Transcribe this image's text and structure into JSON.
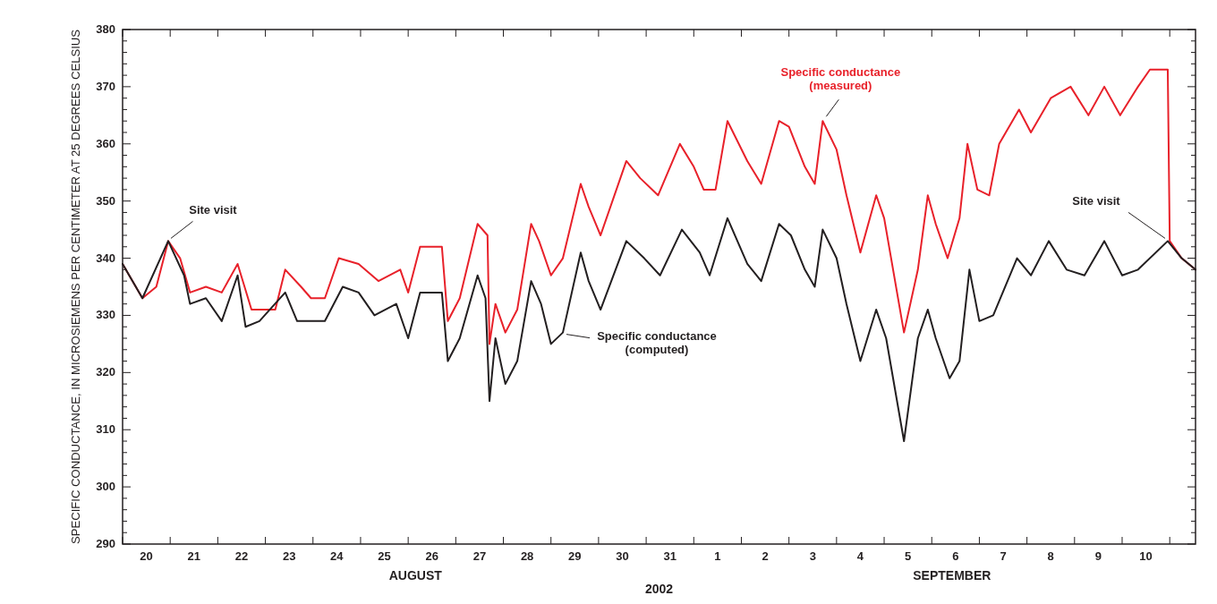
{
  "chart_data": {
    "type": "line",
    "ylabel": "SPECIFIC CONDUCTANCE, IN MICROSIEMENS PER CENTIMETER AT 25 DEGREES CELSIUS",
    "xlabel": "2002",
    "xlim": [
      "2002-08-20T00:00",
      "2002-09-11T13:00"
    ],
    "xticks": [
      {
        "value": "2002-08-20T00:00",
        "label": null
      },
      {
        "value": "2002-08-20T12:00",
        "label": "20"
      },
      {
        "value": "2002-08-21T00:00",
        "label": null
      },
      {
        "value": "2002-08-21T12:00",
        "label": "21"
      },
      {
        "value": "2002-08-22T00:00",
        "label": null
      },
      {
        "value": "2002-08-22T12:00",
        "label": "22"
      },
      {
        "value": "2002-08-23T00:00",
        "label": null
      },
      {
        "value": "2002-08-23T12:00",
        "label": "23"
      },
      {
        "value": "2002-08-24T00:00",
        "label": null
      },
      {
        "value": "2002-08-24T12:00",
        "label": "24"
      },
      {
        "value": "2002-08-25T00:00",
        "label": null
      },
      {
        "value": "2002-08-25T12:00",
        "label": "25"
      },
      {
        "value": "2002-08-26T00:00",
        "label": null
      },
      {
        "value": "2002-08-26T12:00",
        "label": "26"
      },
      {
        "value": "2002-08-27T00:00",
        "label": null
      },
      {
        "value": "2002-08-27T12:00",
        "label": "27"
      },
      {
        "value": "2002-08-28T00:00",
        "label": null
      },
      {
        "value": "2002-08-28T12:00",
        "label": "28"
      },
      {
        "value": "2002-08-29T00:00",
        "label": null
      },
      {
        "value": "2002-08-29T12:00",
        "label": "29"
      },
      {
        "value": "2002-08-30T00:00",
        "label": null
      },
      {
        "value": "2002-08-30T12:00",
        "label": "30"
      },
      {
        "value": "2002-08-31T00:00",
        "label": null
      },
      {
        "value": "2002-08-31T12:00",
        "label": "31"
      },
      {
        "value": "2002-09-01T00:00",
        "label": null
      },
      {
        "value": "2002-09-01T12:00",
        "label": "1"
      },
      {
        "value": "2002-09-02T00:00",
        "label": null
      },
      {
        "value": "2002-09-02T12:00",
        "label": "2"
      },
      {
        "value": "2002-09-03T00:00",
        "label": null
      },
      {
        "value": "2002-09-03T12:00",
        "label": "3"
      },
      {
        "value": "2002-09-04T00:00",
        "label": null
      },
      {
        "value": "2002-09-04T12:00",
        "label": "4"
      },
      {
        "value": "2002-09-05T00:00",
        "label": null
      },
      {
        "value": "2002-09-05T12:00",
        "label": "5"
      },
      {
        "value": "2002-09-06T00:00",
        "label": null
      },
      {
        "value": "2002-09-06T12:00",
        "label": "6"
      },
      {
        "value": "2002-09-07T00:00",
        "label": null
      },
      {
        "value": "2002-09-07T12:00",
        "label": "7"
      },
      {
        "value": "2002-09-08T00:00",
        "label": null
      },
      {
        "value": "2002-09-08T12:00",
        "label": "8"
      },
      {
        "value": "2002-09-09T00:00",
        "label": null
      },
      {
        "value": "2002-09-09T12:00",
        "label": "9"
      },
      {
        "value": "2002-09-10T00:00",
        "label": null
      },
      {
        "value": "2002-09-10T12:00",
        "label": "10"
      },
      {
        "value": "2002-09-11T00:00",
        "label": null
      }
    ],
    "ylim": [
      290,
      380
    ],
    "yticks": [
      290,
      {
        "value": 292,
        "label": null
      },
      {
        "value": 294,
        "label": null
      },
      {
        "value": 296,
        "label": null
      },
      {
        "value": 298,
        "label": null
      },
      300,
      {
        "value": 302,
        "label": null
      },
      {
        "value": 304,
        "label": null
      },
      {
        "value": 306,
        "label": null
      },
      {
        "value": 308,
        "label": null
      },
      310,
      {
        "value": 312,
        "label": null
      },
      {
        "value": 314,
        "label": null
      },
      {
        "value": 316,
        "label": null
      },
      {
        "value": 318,
        "label": null
      },
      320,
      {
        "value": 322,
        "label": null
      },
      {
        "value": 324,
        "label": null
      },
      {
        "value": 326,
        "label": null
      },
      {
        "value": 328,
        "label": null
      },
      330,
      {
        "value": 332,
        "label": null
      },
      {
        "value": 334,
        "label": null
      },
      {
        "value": 336,
        "label": null
      },
      {
        "value": 338,
        "label": null
      },
      340,
      {
        "value": 342,
        "label": null
      },
      {
        "value": 344,
        "label": null
      },
      {
        "value": 346,
        "label": null
      },
      {
        "value": 348,
        "label": null
      },
      350,
      {
        "value": 352,
        "label": null
      },
      {
        "value": 354,
        "label": null
      },
      {
        "value": 356,
        "label": null
      },
      {
        "value": 358,
        "label": null
      },
      360,
      {
        "value": 362,
        "label": null
      },
      {
        "value": 364,
        "label": null
      },
      {
        "value": 366,
        "label": null
      },
      {
        "value": 368,
        "label": null
      },
      370,
      {
        "value": 372,
        "label": null
      },
      {
        "value": 374,
        "label": null
      },
      {
        "value": 376,
        "label": null
      },
      {
        "value": 378,
        "label": null
      },
      380
    ],
    "grid": false,
    "annotations": [
      {
        "text": "Site visit",
        "x": "2002-08-20T23:00",
        "y": 343
      },
      {
        "text": "Site visit",
        "x": "2002-09-10T23:00",
        "y": 343
      },
      "AUGUST",
      "SEPTEMBER"
    ],
    "series": [
      {
        "name": "Specific conductance (measured)",
        "color": "#e8212a",
        "x": [
          "2002-08-20T00:00",
          "2002-08-20T10:00",
          "2002-08-20T17:00",
          "2002-08-20T23:00",
          "2002-08-21T05:00",
          "2002-08-21T10:00",
          "2002-08-21T18:00",
          "2002-08-22T02:00",
          "2002-08-22T10:00",
          "2002-08-22T17:00",
          "2002-08-23T05:00",
          "2002-08-23T10:00",
          "2002-08-23T18:00",
          "2002-08-23T23:00",
          "2002-08-24T06:00",
          "2002-08-24T13:00",
          "2002-08-24T23:00",
          "2002-08-25T09:00",
          "2002-08-25T20:00",
          "2002-08-26T00:00",
          "2002-08-26T06:00",
          "2002-08-26T17:00",
          "2002-08-26T20:00",
          "2002-08-27T02:00",
          "2002-08-27T11:00",
          "2002-08-27T16:00",
          "2002-08-27T17:00",
          "2002-08-27T20:00",
          "2002-08-28T01:00",
          "2002-08-28T07:00",
          "2002-08-28T14:00",
          "2002-08-28T18:00",
          "2002-08-29T00:00",
          "2002-08-29T06:00",
          "2002-08-29T15:00",
          "2002-08-29T19:00",
          "2002-08-30T01:00",
          "2002-08-30T14:00",
          "2002-08-30T21:00",
          "2002-08-31T06:00",
          "2002-08-31T17:00",
          "2002-09-01T00:00",
          "2002-09-01T05:00",
          "2002-09-01T11:00",
          "2002-09-01T17:00",
          "2002-09-02T03:00",
          "2002-09-02T10:00",
          "2002-09-02T19:00",
          "2002-09-03T00:00",
          "2002-09-03T08:00",
          "2002-09-03T13:00",
          "2002-09-03T17:00",
          "2002-09-04T00:00",
          "2002-09-04T05:00",
          "2002-09-04T12:00",
          "2002-09-04T20:00",
          "2002-09-05T00:00",
          "2002-09-05T10:00",
          "2002-09-05T17:00",
          "2002-09-05T22:00",
          "2002-09-06T02:00",
          "2002-09-06T08:00",
          "2002-09-06T14:00",
          "2002-09-06T18:00",
          "2002-09-06T23:00",
          "2002-09-07T05:00",
          "2002-09-07T10:00",
          "2002-09-07T20:00",
          "2002-09-08T02:00",
          "2002-09-08T12:00",
          "2002-09-08T22:00",
          "2002-09-09T07:00",
          "2002-09-09T15:00",
          "2002-09-09T23:00",
          "2002-09-10T08:00",
          "2002-09-10T14:00",
          "2002-09-10T23:00",
          "2002-09-11T00:00",
          "2002-09-11T06:00",
          "2002-09-11T13:00"
        ],
        "values": [
          339,
          333,
          335,
          343,
          340,
          334,
          335,
          334,
          339,
          331,
          331,
          338,
          335,
          333,
          333,
          340,
          339,
          336,
          338,
          334,
          342,
          342,
          329,
          333,
          346,
          344,
          325,
          332,
          327,
          331,
          346,
          343,
          337,
          340,
          353,
          349,
          344,
          357,
          354,
          351,
          360,
          356,
          352,
          352,
          364,
          357,
          353,
          364,
          363,
          356,
          353,
          364,
          359,
          351,
          341,
          351,
          347,
          327,
          338,
          351,
          346,
          340,
          347,
          360,
          352,
          351,
          360,
          366,
          362,
          368,
          370,
          365,
          370,
          365,
          370,
          373,
          373,
          343,
          340,
          338
        ]
      },
      {
        "name": "Specific conductance (computed)",
        "color": "#231f20",
        "x": [
          "2002-08-20T00:00",
          "2002-08-20T10:00",
          "2002-08-20T23:00",
          "2002-08-21T07:00",
          "2002-08-21T10:00",
          "2002-08-21T18:00",
          "2002-08-22T02:00",
          "2002-08-22T10:00",
          "2002-08-22T14:00",
          "2002-08-22T21:00",
          "2002-08-23T10:00",
          "2002-08-23T16:00",
          "2002-08-24T06:00",
          "2002-08-24T15:00",
          "2002-08-24T23:00",
          "2002-08-25T07:00",
          "2002-08-25T18:00",
          "2002-08-26T00:00",
          "2002-08-26T06:00",
          "2002-08-26T17:00",
          "2002-08-26T20:00",
          "2002-08-27T02:00",
          "2002-08-27T11:00",
          "2002-08-27T15:00",
          "2002-08-27T17:00",
          "2002-08-27T20:00",
          "2002-08-28T01:00",
          "2002-08-28T07:00",
          "2002-08-28T14:00",
          "2002-08-28T19:00",
          "2002-08-29T00:00",
          "2002-08-29T06:00",
          "2002-08-29T15:00",
          "2002-08-29T19:00",
          "2002-08-30T01:00",
          "2002-08-30T14:00",
          "2002-08-30T23:00",
          "2002-08-31T07:00",
          "2002-08-31T18:00",
          "2002-09-01T03:00",
          "2002-09-01T08:00",
          "2002-09-01T17:00",
          "2002-09-02T03:00",
          "2002-09-02T10:00",
          "2002-09-02T19:00",
          "2002-09-03T01:00",
          "2002-09-03T08:00",
          "2002-09-03T13:00",
          "2002-09-03T17:00",
          "2002-09-04T00:00",
          "2002-09-04T05:00",
          "2002-09-04T12:00",
          "2002-09-04T20:00",
          "2002-09-05T01:00",
          "2002-09-05T10:00",
          "2002-09-05T17:00",
          "2002-09-05T22:00",
          "2002-09-06T02:00",
          "2002-09-06T09:00",
          "2002-09-06T14:00",
          "2002-09-06T19:00",
          "2002-09-07T00:00",
          "2002-09-07T07:00",
          "2002-09-07T19:00",
          "2002-09-08T02:00",
          "2002-09-08T11:00",
          "2002-09-08T20:00",
          "2002-09-09T05:00",
          "2002-09-09T15:00",
          "2002-09-10T00:00",
          "2002-09-10T08:00",
          "2002-09-10T23:00",
          "2002-09-11T06:00",
          "2002-09-11T13:00"
        ],
        "values": [
          339,
          333,
          343,
          337,
          332,
          333,
          329,
          337,
          328,
          329,
          334,
          329,
          329,
          335,
          334,
          330,
          332,
          326,
          334,
          334,
          322,
          326,
          337,
          333,
          315,
          326,
          318,
          322,
          336,
          332,
          325,
          327,
          341,
          336,
          331,
          343,
          340,
          337,
          345,
          341,
          337,
          347,
          339,
          336,
          346,
          344,
          338,
          335,
          345,
          340,
          332,
          322,
          331,
          326,
          308,
          326,
          331,
          326,
          319,
          322,
          338,
          329,
          330,
          340,
          337,
          343,
          338,
          337,
          343,
          337,
          338,
          343,
          340,
          338
        ]
      }
    ]
  }
}
